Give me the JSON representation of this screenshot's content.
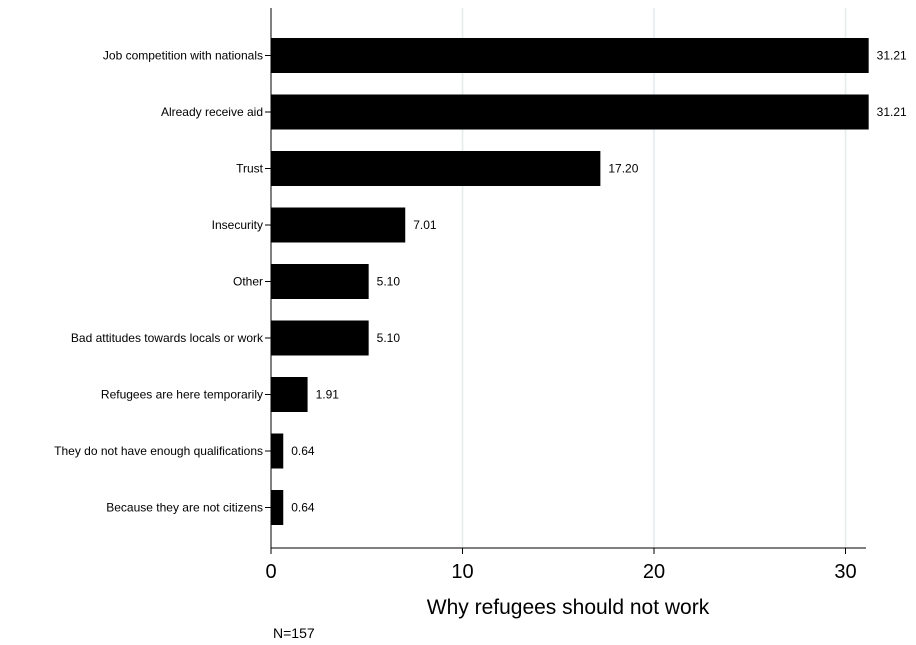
{
  "chart_data": {
    "type": "bar",
    "orientation": "horizontal",
    "categories": [
      "Job competition with nationals",
      "Already receive aid",
      "Trust",
      "Insecurity",
      "Other",
      "Bad attitudes towards locals or work",
      "Refugees are here temporarily",
      "They do not have enough qualifications",
      "Because they are not citizens"
    ],
    "values": [
      31.21,
      31.21,
      17.2,
      7.01,
      5.1,
      5.1,
      1.91,
      0.64,
      0.64
    ],
    "value_labels": [
      "31.21",
      "31.21",
      "17.20",
      "7.01",
      "5.10",
      "5.10",
      "1.91",
      "0.64",
      "0.64"
    ],
    "xlabel": "Why refugees should not work",
    "ylabel": "",
    "xlim": [
      0,
      32.5
    ],
    "xticks": [
      0,
      10,
      20,
      30
    ],
    "grid": true,
    "note": "N=157",
    "colors": {
      "bar": "#000000",
      "grid": "#e4ecee",
      "axis": "#000000"
    }
  }
}
